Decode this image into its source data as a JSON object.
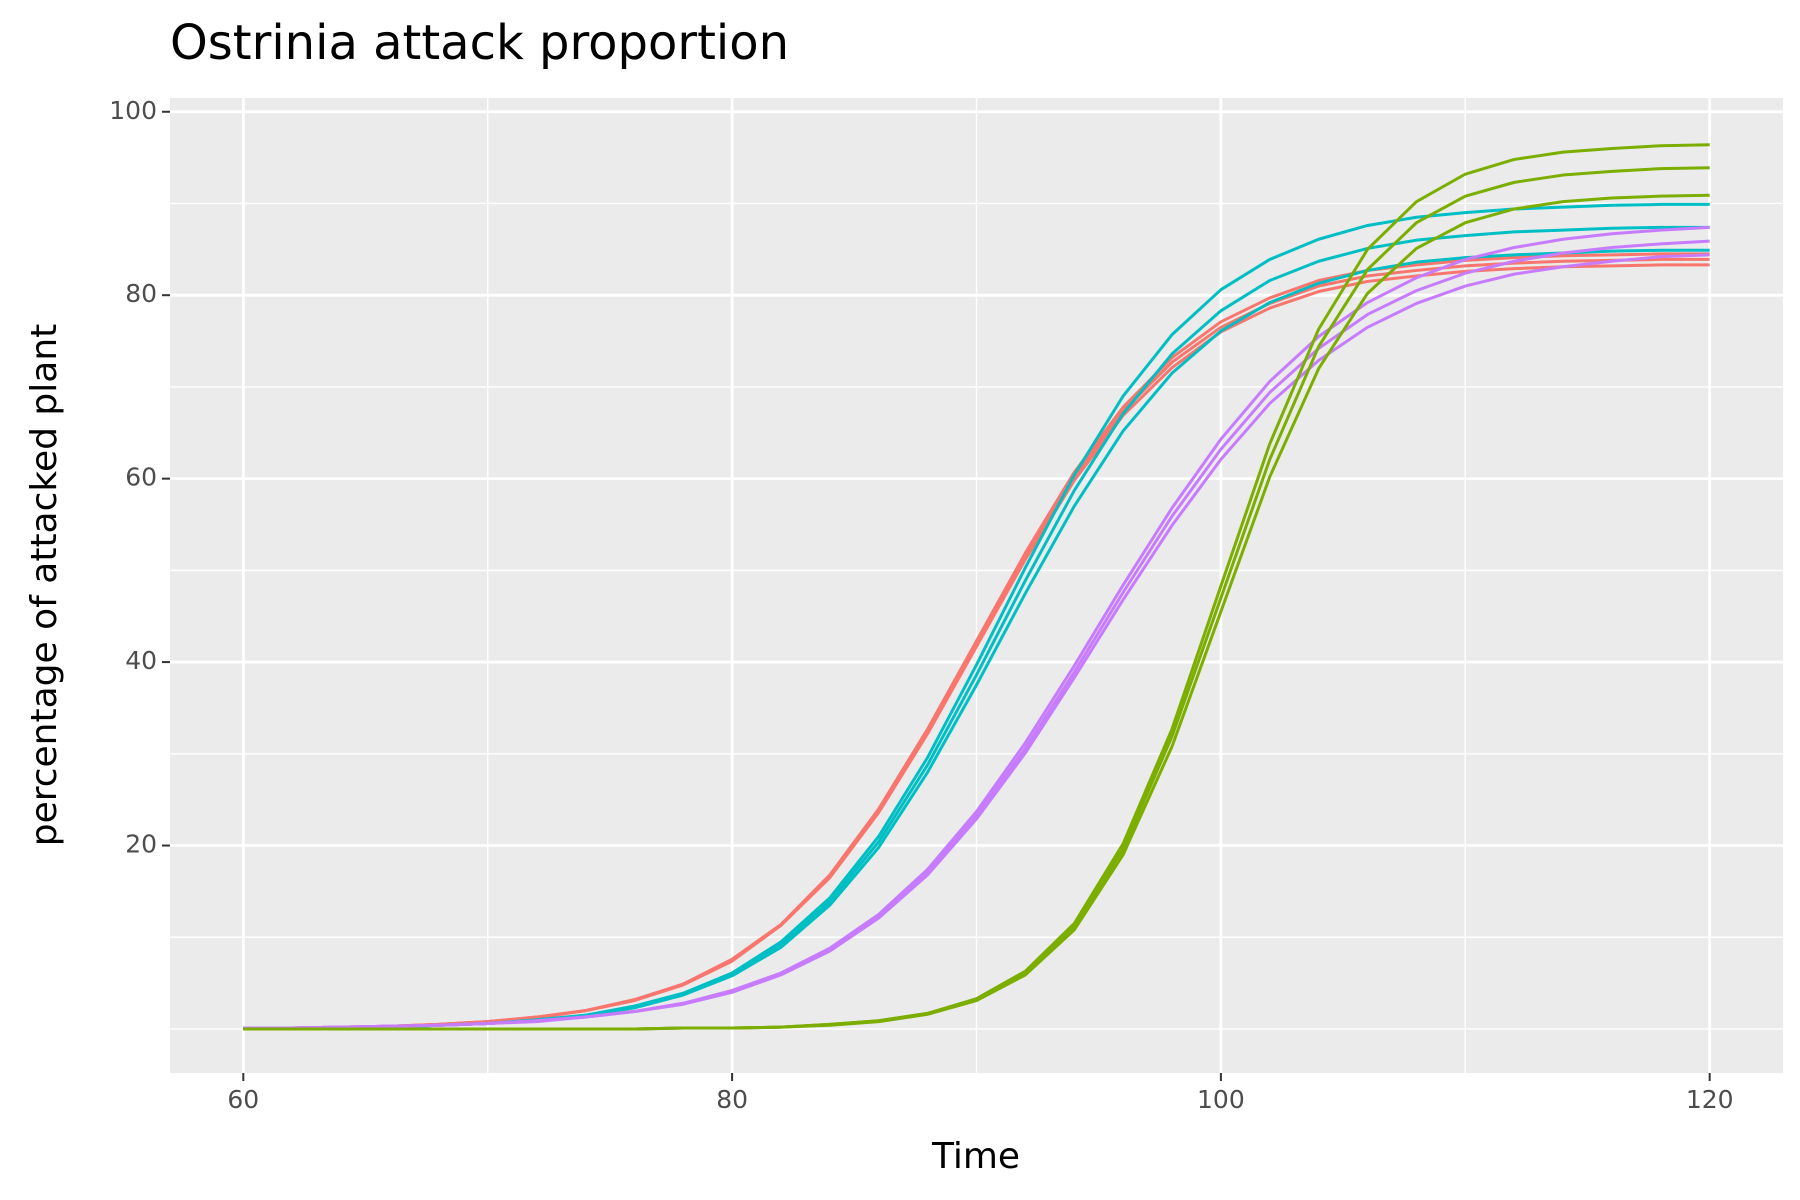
{
  "chart_data": {
    "type": "line",
    "title": "Ostrinia attack proportion",
    "x_label": "Time",
    "y_label": "percentage of attacked plant",
    "x": [
      60,
      62,
      64,
      66,
      68,
      70,
      72,
      74,
      76,
      78,
      80,
      82,
      84,
      86,
      88,
      90,
      92,
      94,
      96,
      98,
      100,
      102,
      104,
      106,
      108,
      110,
      112,
      114,
      116,
      118,
      120
    ],
    "xlim": [
      57,
      123
    ],
    "xticks": [
      60,
      80,
      100,
      120
    ],
    "xminorticks": [
      70,
      90,
      110
    ],
    "ylim": [
      -4.8,
      101.5
    ],
    "yticks": [
      20,
      40,
      60,
      80,
      100
    ],
    "yminorticks": [
      0,
      10,
      30,
      50,
      70,
      90
    ],
    "grid": true,
    "series": [
      {
        "color": "#F8766D",
        "values": [
          0.1,
          0.1,
          0.2,
          0.3,
          0.5,
          0.8,
          1.3,
          2.0,
          3.1,
          4.9,
          7.5,
          11.3,
          16.6,
          23.8,
          32.4,
          42.0,
          51.6,
          60.2,
          67.4,
          72.7,
          76.5,
          79.1,
          81.0,
          82.1,
          82.7,
          83.2,
          83.5,
          83.7,
          83.8,
          83.9,
          83.9
        ]
      },
      {
        "color": "#F8766D",
        "values": [
          0.1,
          0.1,
          0.2,
          0.3,
          0.5,
          0.8,
          1.2,
          2.0,
          3.1,
          4.8,
          7.4,
          11.3,
          16.5,
          23.6,
          32.2,
          41.7,
          51.2,
          59.8,
          66.9,
          72.1,
          76.0,
          78.6,
          80.4,
          81.5,
          82.1,
          82.6,
          82.9,
          83.1,
          83.2,
          83.3,
          83.3
        ]
      },
      {
        "color": "#F8766D",
        "values": [
          0.1,
          0.1,
          0.2,
          0.3,
          0.5,
          0.8,
          1.3,
          2.0,
          3.2,
          4.9,
          7.6,
          11.4,
          16.8,
          24.0,
          32.7,
          42.3,
          51.9,
          60.7,
          67.8,
          73.2,
          77.1,
          79.7,
          81.6,
          82.7,
          83.3,
          83.8,
          84.1,
          84.3,
          84.4,
          84.5,
          84.5
        ]
      },
      {
        "color": "#00BFC4",
        "values": [
          0.1,
          0.1,
          0.1,
          0.2,
          0.4,
          0.6,
          0.9,
          1.5,
          2.3,
          3.7,
          5.8,
          8.9,
          13.5,
          19.8,
          28.0,
          37.5,
          47.5,
          57.0,
          65.2,
          71.5,
          76.1,
          79.2,
          81.3,
          82.7,
          83.6,
          84.1,
          84.4,
          84.6,
          84.8,
          84.9,
          84.9
        ]
      },
      {
        "color": "#00BFC4",
        "values": [
          0.1,
          0.1,
          0.1,
          0.2,
          0.4,
          0.6,
          0.9,
          1.5,
          2.4,
          3.8,
          6.0,
          9.2,
          13.9,
          20.4,
          28.8,
          38.6,
          48.9,
          58.7,
          67.1,
          73.6,
          78.3,
          81.6,
          83.7,
          85.1,
          86.0,
          86.5,
          86.9,
          87.1,
          87.3,
          87.4,
          87.4
        ]
      },
      {
        "color": "#00BFC4",
        "values": [
          0.1,
          0.1,
          0.1,
          0.2,
          0.4,
          0.6,
          1.0,
          1.5,
          2.5,
          3.9,
          6.1,
          9.5,
          14.3,
          21.0,
          29.6,
          39.7,
          50.3,
          60.4,
          69.0,
          75.7,
          80.6,
          83.9,
          86.1,
          87.6,
          88.5,
          89.0,
          89.4,
          89.6,
          89.8,
          89.9,
          89.9
        ]
      },
      {
        "color": "#C77CFF",
        "values": [
          0.1,
          0.1,
          0.2,
          0.3,
          0.4,
          0.6,
          0.8,
          1.3,
          1.9,
          2.7,
          4.0,
          5.9,
          8.5,
          12.1,
          16.8,
          22.9,
          30.1,
          38.3,
          46.8,
          54.9,
          62.1,
          68.2,
          72.9,
          76.5,
          79.1,
          81.0,
          82.3,
          83.1,
          83.7,
          84.2,
          84.4
        ]
      },
      {
        "color": "#C77CFF",
        "values": [
          0.1,
          0.1,
          0.2,
          0.3,
          0.4,
          0.6,
          0.9,
          1.3,
          1.9,
          2.8,
          4.1,
          6.0,
          8.6,
          12.3,
          17.1,
          23.3,
          30.6,
          38.9,
          47.6,
          55.9,
          63.2,
          69.4,
          74.2,
          77.9,
          80.5,
          82.4,
          83.7,
          84.6,
          85.2,
          85.6,
          85.9
        ]
      },
      {
        "color": "#C77CFF",
        "values": [
          0.1,
          0.1,
          0.2,
          0.3,
          0.4,
          0.6,
          0.9,
          1.3,
          1.9,
          2.8,
          4.2,
          6.1,
          8.8,
          12.5,
          17.4,
          23.7,
          31.2,
          39.6,
          48.4,
          56.8,
          64.3,
          70.6,
          75.5,
          79.2,
          81.9,
          83.9,
          85.2,
          86.1,
          86.7,
          87.1,
          87.4
        ]
      },
      {
        "color": "#7CAE00",
        "values": [
          0,
          0,
          0,
          0,
          0,
          0,
          0,
          0,
          0,
          0.1,
          0.1,
          0.2,
          0.4,
          0.8,
          1.6,
          3.1,
          5.9,
          10.8,
          19.0,
          30.8,
          45.5,
          60.2,
          72.0,
          80.2,
          85.1,
          87.9,
          89.4,
          90.2,
          90.6,
          90.8,
          90.9
        ]
      },
      {
        "color": "#7CAE00",
        "values": [
          0,
          0,
          0,
          0,
          0,
          0,
          0,
          0,
          0,
          0.1,
          0.1,
          0.2,
          0.5,
          0.9,
          1.7,
          3.2,
          6.1,
          11.2,
          19.6,
          31.9,
          47.0,
          62.1,
          74.4,
          82.8,
          87.9,
          90.8,
          92.3,
          93.1,
          93.5,
          93.8,
          93.9
        ]
      },
      {
        "color": "#7CAE00",
        "values": [
          0,
          0,
          0,
          0,
          0,
          0,
          0,
          0,
          0,
          0.1,
          0.1,
          0.2,
          0.5,
          0.9,
          1.7,
          3.3,
          6.3,
          11.5,
          20.2,
          32.7,
          48.3,
          63.8,
          76.3,
          85.0,
          90.2,
          93.2,
          94.8,
          95.6,
          96.0,
          96.3,
          96.4
        ]
      }
    ]
  }
}
